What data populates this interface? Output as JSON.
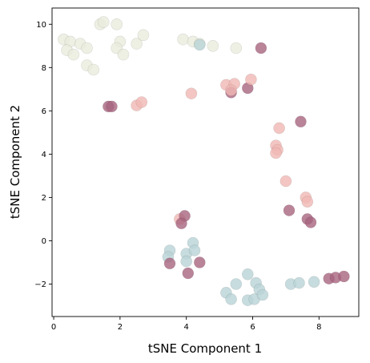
{
  "chart_data": {
    "type": "scatter",
    "title": "",
    "xlabel": "tSNE Component 1",
    "ylabel": "tSNE Component 2",
    "xlim": [
      -0.05,
      9.2
    ],
    "ylim": [
      -3.5,
      10.75
    ],
    "xticks": [
      0,
      2,
      4,
      6,
      8
    ],
    "yticks": [
      -2,
      0,
      2,
      4,
      6,
      8,
      10
    ],
    "ytick_labels": [
      "−2",
      "0",
      "2",
      "4",
      "6",
      "8",
      "10"
    ],
    "grid": false,
    "legend": "none",
    "colors": {
      "cream": "#e9ecdc",
      "pink": "#f0b8b4",
      "mauve": "#a8647e",
      "lightblue": "#b9d3d6",
      "edge": "#000000"
    },
    "points": [
      {
        "x": 0.3,
        "y": 9.3,
        "c": "cream"
      },
      {
        "x": 0.5,
        "y": 9.2,
        "c": "cream"
      },
      {
        "x": 0.4,
        "y": 8.8,
        "c": "cream"
      },
      {
        "x": 0.8,
        "y": 9.1,
        "c": "cream"
      },
      {
        "x": 0.6,
        "y": 8.6,
        "c": "cream"
      },
      {
        "x": 1.0,
        "y": 8.9,
        "c": "cream"
      },
      {
        "x": 1.0,
        "y": 8.1,
        "c": "cream"
      },
      {
        "x": 1.2,
        "y": 7.9,
        "c": "cream"
      },
      {
        "x": 1.4,
        "y": 10.0,
        "c": "cream"
      },
      {
        "x": 1.5,
        "y": 10.1,
        "c": "cream"
      },
      {
        "x": 1.9,
        "y": 10.0,
        "c": "cream"
      },
      {
        "x": 2.0,
        "y": 9.2,
        "c": "cream"
      },
      {
        "x": 1.9,
        "y": 8.9,
        "c": "cream"
      },
      {
        "x": 2.1,
        "y": 8.6,
        "c": "cream"
      },
      {
        "x": 2.5,
        "y": 9.1,
        "c": "cream"
      },
      {
        "x": 2.7,
        "y": 9.5,
        "c": "cream"
      },
      {
        "x": 3.9,
        "y": 9.3,
        "c": "cream"
      },
      {
        "x": 4.2,
        "y": 9.2,
        "c": "cream"
      },
      {
        "x": 4.4,
        "y": 9.1,
        "c": "cream"
      },
      {
        "x": 4.8,
        "y": 9.0,
        "c": "cream"
      },
      {
        "x": 5.5,
        "y": 8.9,
        "c": "cream"
      },
      {
        "x": 4.4,
        "y": 9.05,
        "c": "lightblue"
      },
      {
        "x": 6.25,
        "y": 8.9,
        "c": "mauve"
      },
      {
        "x": 1.65,
        "y": 6.2,
        "c": "mauve"
      },
      {
        "x": 1.75,
        "y": 6.2,
        "c": "mauve"
      },
      {
        "x": 2.5,
        "y": 6.25,
        "c": "pink"
      },
      {
        "x": 2.65,
        "y": 6.4,
        "c": "pink"
      },
      {
        "x": 4.15,
        "y": 6.8,
        "c": "pink"
      },
      {
        "x": 5.2,
        "y": 7.2,
        "c": "pink"
      },
      {
        "x": 5.45,
        "y": 7.25,
        "c": "pink"
      },
      {
        "x": 5.35,
        "y": 6.85,
        "c": "mauve"
      },
      {
        "x": 5.35,
        "y": 6.95,
        "c": "pink"
      },
      {
        "x": 5.85,
        "y": 7.05,
        "c": "mauve"
      },
      {
        "x": 5.95,
        "y": 7.45,
        "c": "pink"
      },
      {
        "x": 6.8,
        "y": 5.2,
        "c": "pink"
      },
      {
        "x": 7.45,
        "y": 5.5,
        "c": "mauve"
      },
      {
        "x": 6.7,
        "y": 4.4,
        "c": "pink"
      },
      {
        "x": 6.75,
        "y": 4.2,
        "c": "pink"
      },
      {
        "x": 6.7,
        "y": 4.05,
        "c": "pink"
      },
      {
        "x": 7.0,
        "y": 2.75,
        "c": "pink"
      },
      {
        "x": 7.6,
        "y": 2.0,
        "c": "pink"
      },
      {
        "x": 7.65,
        "y": 1.8,
        "c": "pink"
      },
      {
        "x": 7.1,
        "y": 1.4,
        "c": "mauve"
      },
      {
        "x": 7.65,
        "y": 1.0,
        "c": "mauve"
      },
      {
        "x": 7.75,
        "y": 0.85,
        "c": "mauve"
      },
      {
        "x": 3.8,
        "y": 1.0,
        "c": "pink"
      },
      {
        "x": 3.95,
        "y": 1.15,
        "c": "mauve"
      },
      {
        "x": 3.85,
        "y": 0.8,
        "c": "mauve"
      },
      {
        "x": 3.5,
        "y": -0.45,
        "c": "lightblue"
      },
      {
        "x": 3.45,
        "y": -0.75,
        "c": "lightblue"
      },
      {
        "x": 3.5,
        "y": -1.05,
        "c": "mauve"
      },
      {
        "x": 4.0,
        "y": -0.6,
        "c": "lightblue"
      },
      {
        "x": 4.2,
        "y": -0.1,
        "c": "lightblue"
      },
      {
        "x": 4.25,
        "y": -0.45,
        "c": "lightblue"
      },
      {
        "x": 4.0,
        "y": -0.95,
        "c": "lightblue"
      },
      {
        "x": 4.4,
        "y": -1.0,
        "c": "mauve"
      },
      {
        "x": 4.05,
        "y": -1.5,
        "c": "mauve"
      },
      {
        "x": 5.2,
        "y": -2.4,
        "c": "lightblue"
      },
      {
        "x": 5.35,
        "y": -2.7,
        "c": "lightblue"
      },
      {
        "x": 5.5,
        "y": -2.0,
        "c": "lightblue"
      },
      {
        "x": 5.85,
        "y": -1.55,
        "c": "lightblue"
      },
      {
        "x": 5.85,
        "y": -2.75,
        "c": "lightblue"
      },
      {
        "x": 6.05,
        "y": -2.7,
        "c": "lightblue"
      },
      {
        "x": 6.1,
        "y": -1.95,
        "c": "lightblue"
      },
      {
        "x": 6.2,
        "y": -2.25,
        "c": "lightblue"
      },
      {
        "x": 6.3,
        "y": -2.5,
        "c": "lightblue"
      },
      {
        "x": 7.15,
        "y": -2.0,
        "c": "lightblue"
      },
      {
        "x": 7.4,
        "y": -1.95,
        "c": "lightblue"
      },
      {
        "x": 7.85,
        "y": -1.9,
        "c": "lightblue"
      },
      {
        "x": 8.3,
        "y": -1.75,
        "c": "mauve"
      },
      {
        "x": 8.5,
        "y": -1.7,
        "c": "mauve"
      },
      {
        "x": 8.75,
        "y": -1.65,
        "c": "mauve"
      }
    ]
  }
}
